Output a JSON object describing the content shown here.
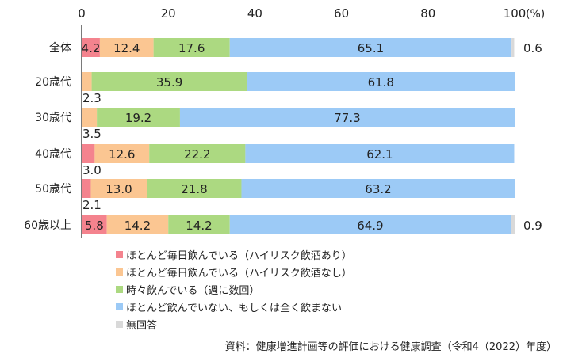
{
  "chart_data": {
    "type": "bar",
    "orientation": "horizontal",
    "stacked": true,
    "categories": [
      "全体",
      "20歳代",
      "30歳代",
      "40歳代",
      "50歳代",
      "60歳以上"
    ],
    "series": [
      {
        "name": "ほとんど毎日飲んでいる（ハイリスク飲酒あり）",
        "color": "#f4838e",
        "values": [
          4.2,
          0,
          0,
          3.0,
          2.1,
          5.8
        ]
      },
      {
        "name": "ほとんど毎日飲んでいる（ハイリスク飲酒なし）",
        "color": "#fbc692",
        "values": [
          12.4,
          2.3,
          3.5,
          12.6,
          13.0,
          14.2
        ]
      },
      {
        "name": "時々飲んでいる（週に数回）",
        "color": "#acd981",
        "values": [
          17.6,
          35.9,
          19.2,
          22.2,
          21.8,
          14.2
        ]
      },
      {
        "name": "ほとんど飲んでいない、もしくは全く飲まない",
        "color": "#9ccaf6",
        "values": [
          65.1,
          61.8,
          77.3,
          62.1,
          63.2,
          64.9
        ]
      },
      {
        "name": "無回答",
        "color": "#d9d9d9",
        "values": [
          0.6,
          0,
          0,
          0,
          0,
          0.9
        ]
      }
    ],
    "xlim": [
      0,
      100
    ],
    "xticks": [
      "0",
      "20",
      "40",
      "60",
      "80",
      "100"
    ],
    "xunit": "(%)",
    "legend_position": "bottom"
  },
  "source": "資料：健康増進計画等の評価における健康調査（令和4（2022）年度）"
}
